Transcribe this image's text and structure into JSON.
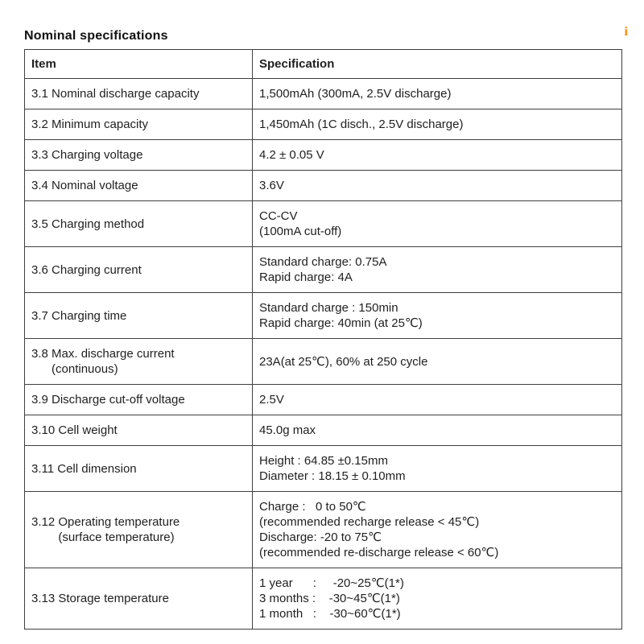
{
  "page": {
    "title": "Nominal specifications",
    "corner_mark": "i"
  },
  "colors": {
    "border": "#3f3f3f",
    "text": "#1f1f1f",
    "corner_mark": "#ff8a00"
  },
  "table": {
    "headers": [
      "Item",
      "Specification"
    ],
    "rows": [
      {
        "item": [
          "3.1 Nominal discharge capacity"
        ],
        "spec": [
          "1,500mAh (300mA, 2.5V discharge)"
        ]
      },
      {
        "item": [
          "3.2 Minimum capacity"
        ],
        "spec": [
          "1,450mAh (1C disch., 2.5V discharge)"
        ]
      },
      {
        "item": [
          "3.3 Charging voltage"
        ],
        "spec": [
          "4.2 ± 0.05 V"
        ]
      },
      {
        "item": [
          "3.4 Nominal voltage"
        ],
        "spec": [
          "3.6V"
        ]
      },
      {
        "item": [
          "3.5 Charging method"
        ],
        "spec": [
          "CC-CV",
          "(100mA cut-off)"
        ]
      },
      {
        "item": [
          "3.6 Charging current"
        ],
        "spec": [
          "Standard charge: 0.75A",
          "Rapid charge: 4A"
        ]
      },
      {
        "item": [
          "3.7 Charging time"
        ],
        "spec": [
          "Standard charge : 150min",
          "Rapid charge: 40min (at 25℃)"
        ]
      },
      {
        "item": [
          "3.8 Max. discharge current",
          "      (continuous)"
        ],
        "spec": [
          "23A(at 25℃), 60% at 250 cycle"
        ]
      },
      {
        "item": [
          "3.9 Discharge cut-off voltage"
        ],
        "spec": [
          "2.5V"
        ]
      },
      {
        "item": [
          "3.10 Cell weight"
        ],
        "spec": [
          "45.0g max"
        ]
      },
      {
        "item": [
          "3.11 Cell dimension"
        ],
        "spec": [
          "Height : 64.85 ±0.15mm",
          "Diameter : 18.15 ± 0.10mm"
        ]
      },
      {
        "item": [
          "3.12 Operating temperature",
          "        (surface temperature)"
        ],
        "spec": [
          "Charge :   0 to 50℃",
          "(recommended recharge release < 45℃)",
          "Discharge: -20 to 75℃",
          "(recommended re-discharge release < 60℃)"
        ]
      },
      {
        "item": [
          "3.13 Storage temperature"
        ],
        "spec": [
          "1 year      :     -20~25℃(1*)",
          "3 months :    -30~45℃(1*)",
          "1 month   :    -30~60℃(1*)"
        ]
      }
    ]
  }
}
